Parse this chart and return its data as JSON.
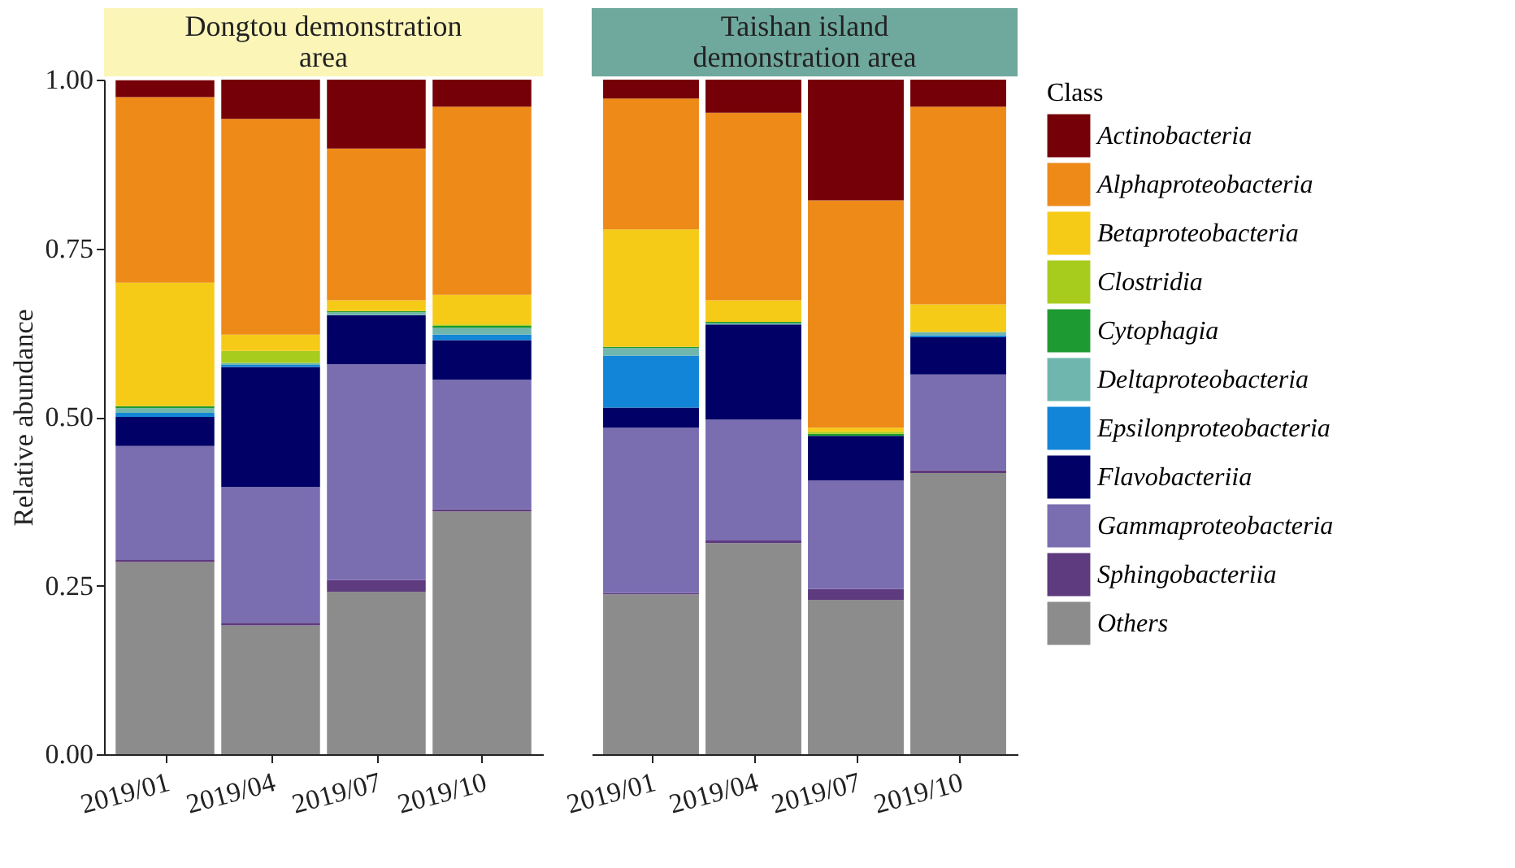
{
  "chart_data": [
    {
      "type": "bar",
      "stacked": true,
      "title": "Dongtou demonstration area",
      "ylabel": "Relative abundance",
      "legend_title": "Class",
      "legend": "right",
      "grid": false,
      "categories": [
        "2019/01",
        "2019/04",
        "2019/07",
        "2019/10"
      ],
      "ylim": [
        0,
        1.0
      ],
      "yticks": [
        {
          "value": 0,
          "label": "0.00"
        },
        {
          "value": 0.25,
          "label": "0.25"
        },
        {
          "value": 0.5,
          "label": "0.50"
        },
        {
          "value": 0.75,
          "label": "0.75"
        },
        {
          "value": 1.0,
          "label": "1.00"
        }
      ],
      "series": [
        {
          "name": "Others",
          "color": "#8c8c8c",
          "values": [
            0.285,
            0.191,
            0.241,
            0.36
          ]
        },
        {
          "name": "Sphingobacteriia",
          "color": "#5e3a7e",
          "values": [
            0.003,
            0.004,
            0.017,
            0.003
          ]
        },
        {
          "name": "Gammaproteobacteria",
          "color": "#7a6db0",
          "values": [
            0.169,
            0.201,
            0.32,
            0.192
          ]
        },
        {
          "name": "Flavobacteriia",
          "color": "#000066",
          "values": [
            0.043,
            0.178,
            0.073,
            0.059
          ]
        },
        {
          "name": "Epsilonproteobacteria",
          "color": "#1385d8",
          "values": [
            0.006,
            0.003,
            0.0,
            0.008
          ]
        },
        {
          "name": "Deltaproteobacteria",
          "color": "#6fb7ae",
          "values": [
            0.007,
            0.003,
            0.004,
            0.01
          ]
        },
        {
          "name": "Cytophagia",
          "color": "#1e9a32",
          "values": [
            0.003,
            0.0,
            0.002,
            0.003
          ]
        },
        {
          "name": "Clostridia",
          "color": "#a8cc1e",
          "values": [
            null,
            0.018,
            0.0,
            0.002
          ]
        },
        {
          "name": "Betaproteobacteria",
          "color": "#f5cb18",
          "values": [
            0.183,
            0.024,
            0.016,
            0.044
          ]
        },
        {
          "name": "Alphaproteobacteria",
          "color": "#ee8a18",
          "values": [
            0.275,
            0.32,
            0.225,
            0.279
          ]
        },
        {
          "name": "Actinobacteria",
          "color": "#760008",
          "values": [
            0.025,
            0.058,
            0.102,
            0.04
          ]
        }
      ]
    },
    {
      "type": "bar",
      "stacked": true,
      "title": "Taishan island demonstration area",
      "grid": false,
      "tick_labels": "x",
      "categories": [
        "2019/01",
        "2019/04",
        "2019/07",
        "2019/10"
      ],
      "ylim": [
        0,
        1.0
      ],
      "series": [
        {
          "color": "#8c8c8c",
          "values": [
            0.237,
            0.313,
            0.229,
            0.417
          ]
        },
        {
          "color": "#5e3a7e",
          "values": [
            0.002,
            0.004,
            0.016,
            0.004
          ]
        },
        {
          "color": "#7a6db0",
          "values": [
            0.245,
            0.179,
            0.161,
            0.142
          ]
        },
        {
          "color": "#000066",
          "values": [
            0.03,
            0.141,
            0.066,
            0.055
          ]
        },
        {
          "color": "#1385d8",
          "values": [
            0.077,
            0.0,
            0.0,
            0.003
          ]
        },
        {
          "color": "#6fb7ae",
          "values": [
            0.011,
            0.002,
            0.0,
            0.005
          ]
        },
        {
          "color": "#1e9a32",
          "values": [
            0.002,
            0.002,
            0.003,
            0.0
          ]
        },
        {
          "color": "#a8cc1e",
          "values": [
            0.0,
            0.0,
            0.003,
            0.0
          ]
        },
        {
          "color": "#f5cb18",
          "values": [
            0.174,
            0.032,
            0.006,
            0.041
          ]
        },
        {
          "color": "#ee8a18",
          "values": [
            0.194,
            0.278,
            0.337,
            0.293
          ]
        },
        {
          "color": "#760008",
          "values": [
            0.028,
            0.049,
            0.179,
            0.04
          ]
        }
      ]
    }
  ]
}
